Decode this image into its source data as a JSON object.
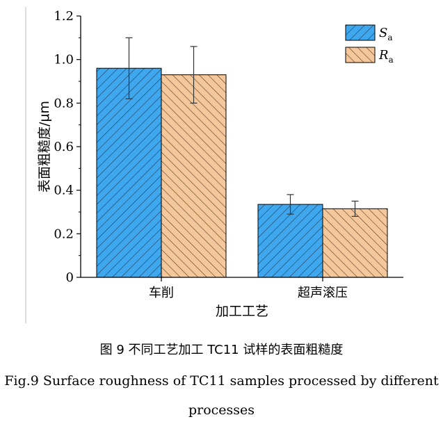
{
  "chart_data": {
    "type": "bar",
    "categories": [
      "车削",
      "超声滚压"
    ],
    "series": [
      {
        "name": "Sa",
        "name_main": "S",
        "name_sub": "a",
        "values": [
          0.96,
          0.335
        ],
        "errors": [
          0.14,
          0.045
        ],
        "color": "#3fa7ee",
        "hatch": "/"
      },
      {
        "name": "Ra",
        "name_main": "R",
        "name_sub": "a",
        "values": [
          0.93,
          0.315
        ],
        "errors": [
          0.13,
          0.035
        ],
        "color": "#f4c89a",
        "hatch": "\\"
      }
    ],
    "xlabel": "加工工艺",
    "ylabel": "表面粗糙度/μm",
    "ylim": [
      0,
      1.2
    ],
    "yticks": [
      0,
      0.2,
      0.4,
      0.6,
      0.8,
      1.0,
      1.2
    ],
    "ytick_labels": [
      "0",
      "0.2",
      "0.4",
      "0.6",
      "0.8",
      "1.0",
      "1.2"
    ],
    "grid": false,
    "legend_position": "top-right"
  },
  "caption": {
    "zh": "图 9  不同工艺加工 TC11 试样的表面粗糙度",
    "en_line1": "Fig.9 Surface roughness of TC11 samples processed by different",
    "en_line2": "processes"
  }
}
